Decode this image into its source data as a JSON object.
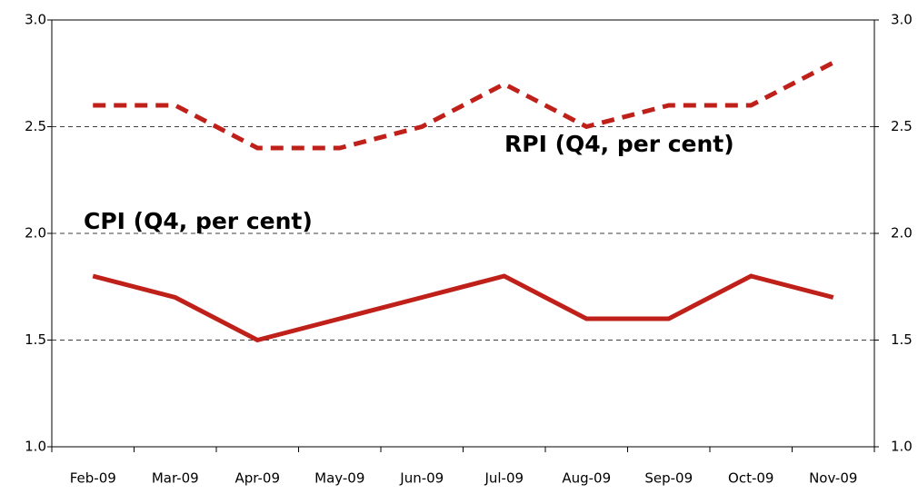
{
  "chart_data": {
    "type": "line",
    "categories": [
      "Feb-09",
      "Mar-09",
      "Apr-09",
      "May-09",
      "Jun-09",
      "Jul-09",
      "Aug-09",
      "Sep-09",
      "Oct-09",
      "Nov-09"
    ],
    "series": [
      {
        "name": "CPI (Q4, per cent)",
        "color": "#c0201a",
        "line_style": "solid",
        "values": [
          1.8,
          1.7,
          1.5,
          1.6,
          1.7,
          1.8,
          1.6,
          1.6,
          1.8,
          1.7
        ]
      },
      {
        "name": "RPI (Q4, per cent)",
        "color": "#c0201a",
        "line_style": "dashed",
        "values": [
          2.6,
          2.6,
          2.4,
          2.4,
          2.5,
          2.7,
          2.5,
          2.6,
          2.6,
          2.8
        ]
      }
    ],
    "ylim": [
      1.0,
      3.0
    ],
    "yticks": [
      {
        "value": 1.0,
        "label": "1.0"
      },
      1.5,
      {
        "value": 2.0,
        "label": "2.0"
      },
      2.5,
      {
        "value": 3.0,
        "label": "3.0"
      }
    ],
    "y2lim": [
      1.0,
      3.0
    ],
    "y2ticks": [
      {
        "value": 1.0,
        "label": "1.0"
      },
      1.5,
      {
        "value": 2.0,
        "label": "2.0"
      },
      2.5,
      {
        "value": 3.0,
        "label": "3.0"
      }
    ],
    "grid": true
  }
}
